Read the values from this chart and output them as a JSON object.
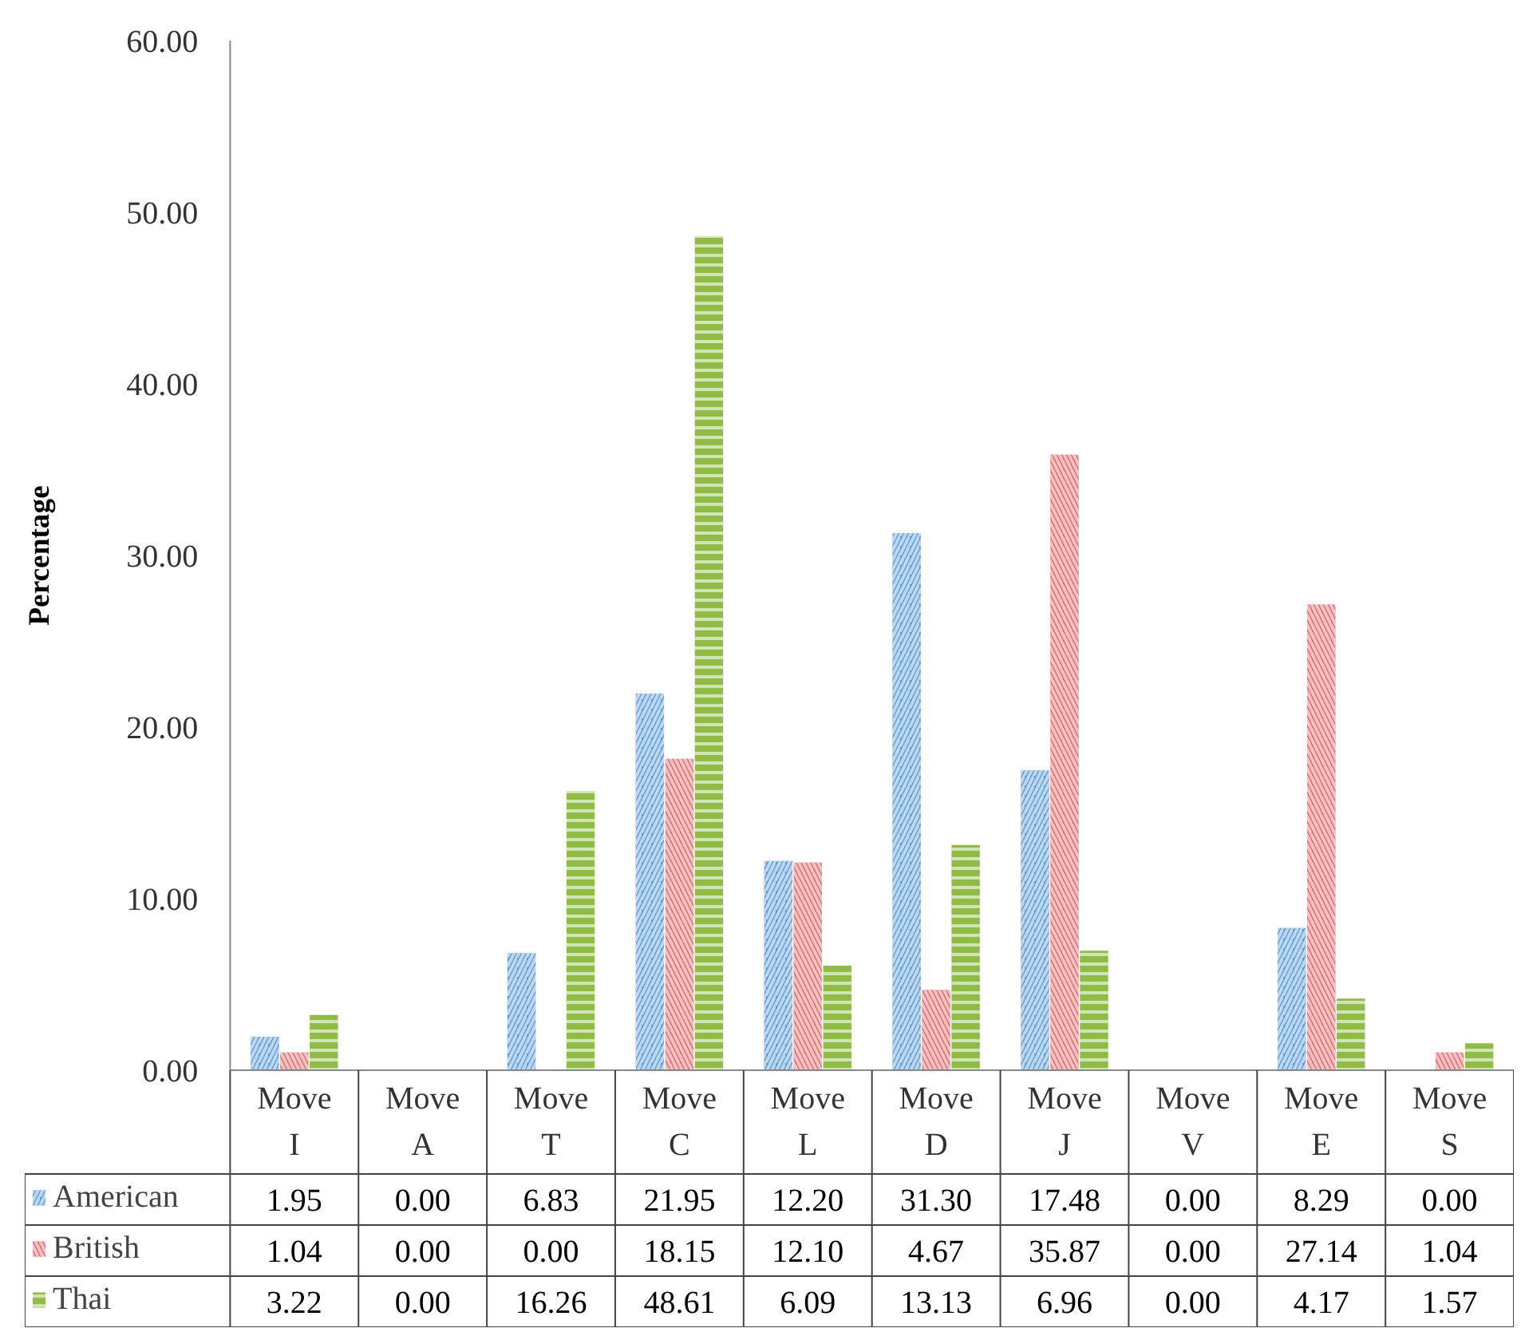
{
  "chart_data": {
    "type": "bar",
    "ylabel": "Percentage",
    "categories": [
      "Move I",
      "Move A",
      "Move T",
      "Move C",
      "Move L",
      "Move D",
      "Move J",
      "Move V",
      "Move E",
      "Move S"
    ],
    "series": [
      {
        "name": "American",
        "color": "#5b9bd5",
        "values": [
          1.95,
          0.0,
          6.83,
          21.95,
          12.2,
          31.3,
          17.48,
          0.0,
          8.29,
          0.0
        ],
        "value_labels": [
          "1.95",
          "0.00",
          "6.83",
          "21.95",
          "12.20",
          "31.30",
          "17.48",
          "0.00",
          "8.29",
          "0.00"
        ]
      },
      {
        "name": "British",
        "color": "#e06666",
        "values": [
          1.04,
          0.0,
          0.0,
          18.15,
          12.1,
          4.67,
          35.87,
          0.0,
          27.14,
          1.04
        ],
        "value_labels": [
          "1.04",
          "0.00",
          "0.00",
          "18.15",
          "12.10",
          "4.67",
          "35.87",
          "0.00",
          "27.14",
          "1.04"
        ]
      },
      {
        "name": "Thai",
        "color": "#8fbc45",
        "values": [
          3.22,
          0.0,
          16.26,
          48.61,
          6.09,
          13.13,
          6.96,
          0.0,
          4.17,
          1.57
        ],
        "value_labels": [
          "3.22",
          "0.00",
          "16.26",
          "48.61",
          "6.09",
          "13.13",
          "6.96",
          "0.00",
          "4.17",
          "1.57"
        ]
      }
    ],
    "ylim": [
      0,
      60
    ],
    "yticks": [
      {
        "value": 0,
        "label": "0.00"
      },
      {
        "value": 10,
        "label": "10.00"
      },
      {
        "value": 20,
        "label": "20.00"
      },
      {
        "value": 30,
        "label": "30.00"
      },
      {
        "value": 40,
        "label": "40.00"
      },
      {
        "value": 50,
        "label": "50.00"
      },
      {
        "value": 60,
        "label": "60.00"
      }
    ],
    "grid": false,
    "legend": "bottom"
  }
}
